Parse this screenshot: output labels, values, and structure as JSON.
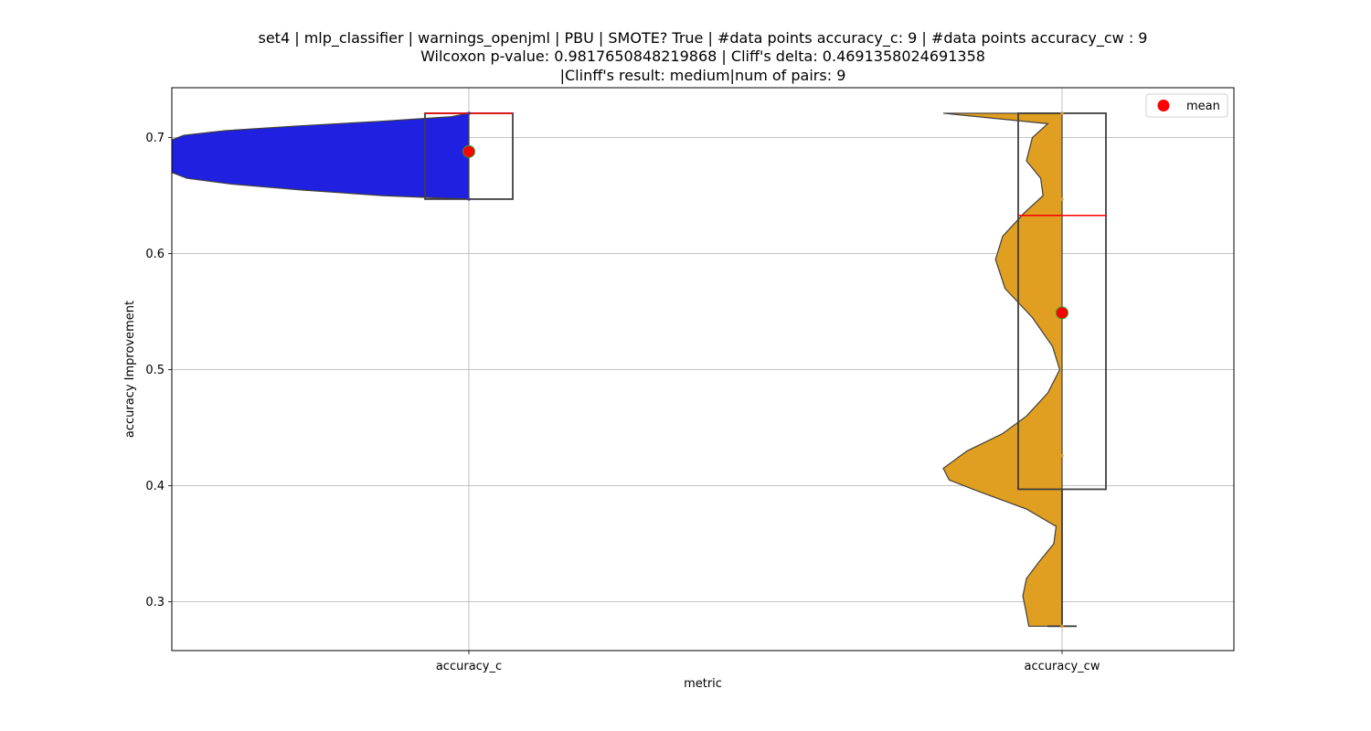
{
  "chart_data": {
    "type": "violin-box",
    "title_lines": [
      "set4 | mlp_classifier | warnings_openjml | PBU | SMOTE? True | #data points accuracy_c: 9 | #data points accuracy_cw : 9",
      "Wilcoxon p-value: 0.9817650848219868 | Cliff's delta: 0.4691358024691358",
      "|Clinff's result: medium|num of pairs: 9"
    ],
    "xlabel": "metric",
    "ylabel": "accuracy Improvement",
    "categories": [
      "accuracy_c",
      "accuracy_cw"
    ],
    "ylim": [
      0.258,
      0.743
    ],
    "yticks": [
      0.3,
      0.4,
      0.5,
      0.6,
      0.7
    ],
    "ytick_labels": [
      "0.3",
      "0.4",
      "0.5",
      "0.6",
      "0.7"
    ],
    "grid": true,
    "legend": {
      "placement": "top-right",
      "entries": [
        {
          "label": "mean",
          "color": "#ff0000"
        }
      ]
    },
    "series": [
      {
        "category": "accuracy_c",
        "violin_color": "#2020e0",
        "violin_range": [
          0.647,
          0.721
        ],
        "violin_profile": [
          [
            0.647,
            0.0
          ],
          [
            0.65,
            0.29
          ],
          [
            0.655,
            0.57
          ],
          [
            0.66,
            0.8
          ],
          [
            0.665,
            0.95
          ],
          [
            0.67,
            1.0
          ],
          [
            0.698,
            1.0
          ],
          [
            0.702,
            0.96
          ],
          [
            0.706,
            0.82
          ],
          [
            0.71,
            0.58
          ],
          [
            0.714,
            0.3
          ],
          [
            0.718,
            0.06
          ],
          [
            0.721,
            0.0
          ]
        ],
        "box": {
          "q1": 0.647,
          "median": 0.721,
          "q3": 0.721,
          "whisker_low": 0.647,
          "whisker_high": 0.721
        },
        "mean": 0.688,
        "points": [
          0.647,
          0.721
        ],
        "point_color": "#3a3a9a"
      },
      {
        "category": "accuracy_cw",
        "violin_color": "#e09f20",
        "violin_range": [
          0.279,
          0.721
        ],
        "violin_profile": [
          [
            0.279,
            0.28
          ],
          [
            0.29,
            0.3
          ],
          [
            0.305,
            0.33
          ],
          [
            0.32,
            0.3
          ],
          [
            0.335,
            0.19
          ],
          [
            0.35,
            0.07
          ],
          [
            0.365,
            0.05
          ],
          [
            0.38,
            0.3
          ],
          [
            0.395,
            0.7
          ],
          [
            0.405,
            0.95
          ],
          [
            0.415,
            1.0
          ],
          [
            0.43,
            0.8
          ],
          [
            0.445,
            0.5
          ],
          [
            0.46,
            0.3
          ],
          [
            0.48,
            0.12
          ],
          [
            0.5,
            0.02
          ],
          [
            0.52,
            0.08
          ],
          [
            0.545,
            0.25
          ],
          [
            0.57,
            0.48
          ],
          [
            0.595,
            0.56
          ],
          [
            0.615,
            0.5
          ],
          [
            0.635,
            0.32
          ],
          [
            0.65,
            0.16
          ],
          [
            0.665,
            0.18
          ],
          [
            0.68,
            0.3
          ],
          [
            0.7,
            0.25
          ],
          [
            0.712,
            0.12
          ],
          [
            0.721,
            1.0
          ]
        ],
        "box": {
          "q1": 0.397,
          "median": 0.633,
          "q3": 0.721,
          "whisker_low": 0.279,
          "whisker_high": 0.721
        },
        "mean": 0.549,
        "points": [
          0.279,
          0.426,
          0.647,
          0.721
        ],
        "point_color": "#e0a040"
      }
    ]
  }
}
